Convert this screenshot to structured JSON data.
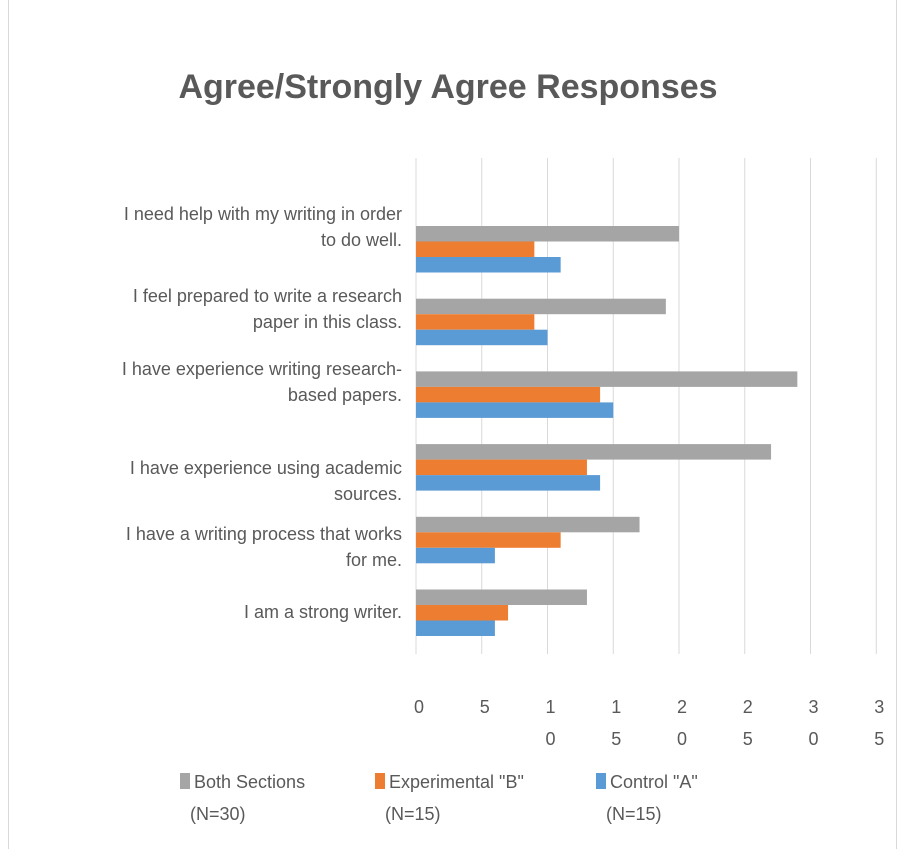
{
  "chart_data": {
    "type": "bar",
    "orientation": "horizontal",
    "title": "Agree/Strongly Agree Responses",
    "xlabel": "",
    "ylabel": "",
    "xlim": [
      0,
      35
    ],
    "grid": true,
    "legend_position": "bottom",
    "tick_labels": [
      "0",
      "5",
      "10",
      "15",
      "20",
      "25",
      "30",
      "35"
    ],
    "categories": [
      [
        "I need help with my writing in order",
        "to do well."
      ],
      [
        "I feel prepared to write a research",
        "paper in this class."
      ],
      [
        "I have experience writing research-",
        "based papers."
      ],
      [
        "I have experience using academic",
        "sources."
      ],
      [
        "I have a writing process that works",
        "for me."
      ],
      [
        "I am a strong writer."
      ]
    ],
    "series": [
      {
        "name": "Both Sections",
        "name_line2": "(N=30)",
        "color": "#a5a5a5",
        "values": [
          20,
          19,
          29,
          27,
          17,
          13
        ]
      },
      {
        "name": "Experimental \"B\"",
        "name_line2": "(N=15)",
        "color": "#ed7d31",
        "values": [
          9,
          9,
          14,
          13,
          11,
          7
        ]
      },
      {
        "name": "Control \"A\"",
        "name_line2": "(N=15)",
        "color": "#5b9bd5",
        "values": [
          11,
          10,
          15,
          14,
          6,
          6
        ]
      }
    ]
  }
}
